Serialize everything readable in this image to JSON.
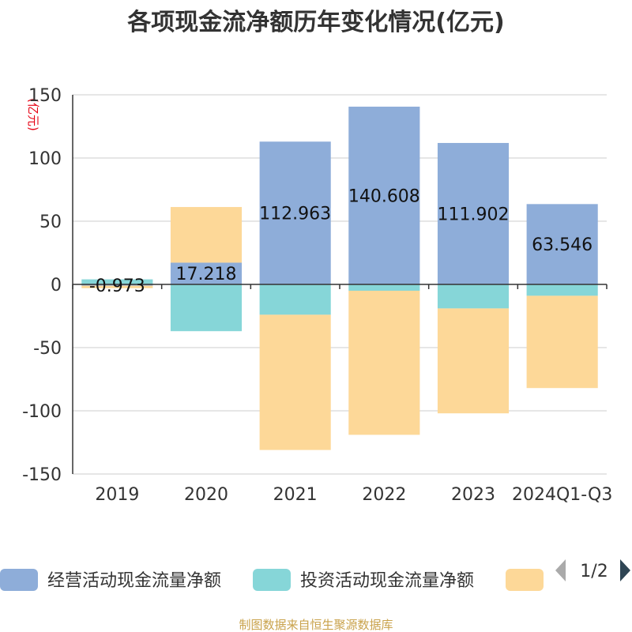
{
  "chart_data": {
    "type": "bar",
    "title": "各项现金流净额历年变化情况(亿元)",
    "ylabel": "(亿元)",
    "xlabel": "",
    "ylim": [
      -150,
      150
    ],
    "yticks": [
      -150,
      -100,
      -50,
      0,
      50,
      100,
      150
    ],
    "stacked": true,
    "categories": [
      "2019",
      "2020",
      "2021",
      "2022",
      "2023",
      "2024Q1-Q3"
    ],
    "series": [
      {
        "name": "经营活动现金流量净额",
        "color": "#8eadd9",
        "values": [
          -0.973,
          17.218,
          112.963,
          140.608,
          111.902,
          63.546
        ]
      },
      {
        "name": "投资活动现金流量净额",
        "color": "#86d6d8",
        "values": [
          4,
          -37,
          -24,
          -5,
          -19,
          -9
        ]
      },
      {
        "name": "",
        "color": "#fdd898",
        "values": [
          -2,
          44,
          -107,
          -114,
          -83,
          -73
        ]
      }
    ],
    "data_labels": [
      "-0.973",
      "17.218",
      "112.963",
      "140.608",
      "111.902",
      "63.546"
    ],
    "grid": true,
    "legend_position": "bottom"
  },
  "legend": {
    "page": "1/2"
  },
  "source": "制图数据来自恒生聚源数据库",
  "icons": {
    "prev": "triangle-left-icon",
    "next": "triangle-right-icon"
  }
}
